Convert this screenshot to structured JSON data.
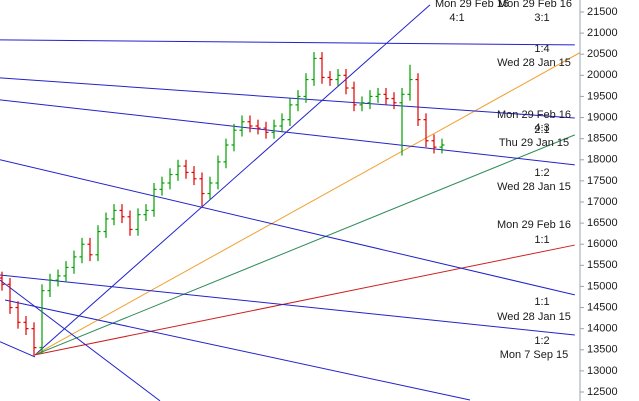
{
  "chart_data": {
    "type": "ohlc",
    "up_color": "#00a000",
    "down_color": "#e00000",
    "xlim": [
      -0.25,
      79.625
    ],
    "ylim": [
      12287,
      21784
    ],
    "yticks": [
      12500,
      13000,
      13500,
      14000,
      14500,
      15000,
      15500,
      16000,
      16500,
      17000,
      17500,
      18000,
      18500,
      19000,
      19500,
      20000,
      20500,
      21000,
      21500
    ],
    "open": [
      15200,
      15050,
      14500,
      14150,
      14000,
      13550,
      14900,
      15150,
      15250,
      15450,
      15700,
      16000,
      15750,
      16300,
      16600,
      16800,
      16650,
      16350,
      16700,
      16800,
      17300,
      17450,
      17650,
      17850,
      17700,
      17550,
      17200,
      17450,
      17950,
      18350,
      18700,
      18900,
      18800,
      18750,
      18650,
      18800,
      18950,
      19300,
      19500,
      19900,
      20400,
      19950,
      19900,
      20000,
      19700,
      19300,
      19350,
      19500,
      19550,
      19450,
      19350,
      19550,
      19900,
      18950,
      18450,
      18300
    ],
    "high": [
      15350,
      15200,
      14650,
      14300,
      14150,
      15050,
      15300,
      15400,
      15600,
      15850,
      16150,
      16150,
      16450,
      16750,
      16950,
      16950,
      16800,
      16850,
      16950,
      17450,
      17600,
      17800,
      18000,
      18000,
      17850,
      17700,
      17600,
      18100,
      18500,
      18850,
      19050,
      19050,
      18950,
      18900,
      18950,
      19100,
      19450,
      19650,
      20050,
      20550,
      20550,
      20100,
      20150,
      20150,
      19850,
      19500,
      19650,
      19700,
      19700,
      19600,
      19700,
      20250,
      20050,
      19100,
      18600,
      18500
    ],
    "low": [
      14900,
      14350,
      14000,
      13850,
      13350,
      13400,
      14750,
      15000,
      15100,
      15300,
      15550,
      15600,
      15600,
      16150,
      16450,
      16500,
      16200,
      16200,
      16550,
      16650,
      17150,
      17300,
      17500,
      17550,
      17400,
      16900,
      17050,
      17300,
      17800,
      18200,
      18550,
      18650,
      18600,
      18500,
      18500,
      18650,
      18800,
      19150,
      19350,
      19750,
      19800,
      19750,
      19750,
      19550,
      19150,
      19150,
      19200,
      19350,
      19300,
      19200,
      18100,
      19400,
      18800,
      18300,
      18150,
      18150
    ],
    "close": [
      15050,
      14500,
      14150,
      14000,
      13550,
      14900,
      15150,
      15250,
      15450,
      15700,
      16000,
      15750,
      16300,
      16600,
      16800,
      16650,
      16350,
      16700,
      16800,
      17300,
      17450,
      17650,
      17850,
      17700,
      17550,
      17200,
      17450,
      17950,
      18350,
      18700,
      18900,
      18800,
      18750,
      18650,
      18800,
      18950,
      19300,
      19500,
      19900,
      20400,
      19950,
      19900,
      20000,
      19700,
      19300,
      19350,
      19500,
      19550,
      19450,
      19350,
      19550,
      19900,
      18950,
      18450,
      18300,
      18350
    ],
    "lines": [
      {
        "color": "#2222cc",
        "x": [
          4.125,
          53.5
        ],
        "y": [
          13380,
          21670
        ]
      },
      {
        "color": "#f0a030",
        "x": [
          4.125,
          79.6
        ],
        "y": [
          13380,
          21310
        ]
      },
      {
        "color": "#2e8b57",
        "x": [
          4.125,
          71.6
        ],
        "y": [
          13380,
          18590
        ]
      },
      {
        "color": "#cc2020",
        "x": [
          4.125,
          71.6
        ],
        "y": [
          13380,
          15980
        ]
      },
      {
        "color": "#2222cc",
        "x": [
          -0.25,
          71.6
        ],
        "y": [
          20840,
          20720
        ]
      },
      {
        "color": "#2222cc",
        "x": [
          -0.25,
          71.6
        ],
        "y": [
          19940,
          18990
        ]
      },
      {
        "color": "#2222cc",
        "x": [
          -0.25,
          71.6
        ],
        "y": [
          19420,
          17880
        ]
      },
      {
        "color": "#2222cc",
        "x": [
          -0.25,
          71.6
        ],
        "y": [
          18000,
          14800
        ]
      },
      {
        "color": "#2222cc",
        "x": [
          -0.25,
          71.6
        ],
        "y": [
          15270,
          13850
        ]
      },
      {
        "color": "#2222cc",
        "x": [
          -0.25,
          19.75
        ],
        "y": [
          15150,
          12290
        ]
      },
      {
        "color": "#2222cc",
        "x": [
          0.375,
          58.5
        ],
        "y": [
          14680,
          12310
        ]
      },
      {
        "color": "#2222cc",
        "x": [
          -0.25,
          4.125
        ],
        "y": [
          13690,
          13330
        ]
      }
    ],
    "annotations": [
      "Mon 29 Feb 16",
      "4:1",
      "Mon 29 Feb 16",
      "3:1",
      "1:4",
      "Wed 28 Jan 15",
      "Mon 29 Feb 16",
      "4:3",
      "2:1",
      "Thu 29 Jan 15",
      "1:2",
      "Wed 28 Jan 15",
      "Mon 29 Feb 16",
      "1:1",
      "1:1",
      "Wed 28 Jan 15",
      "1:2",
      "Mon 7 Sep 15"
    ]
  }
}
